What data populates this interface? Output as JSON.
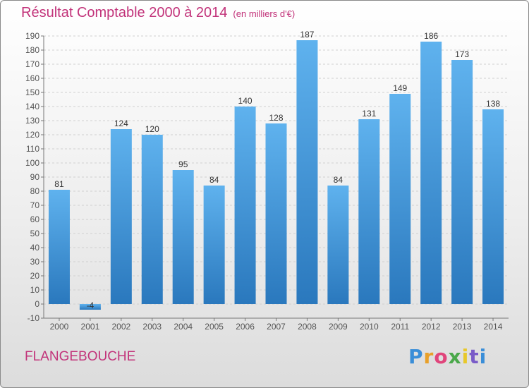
{
  "title": "Résultat Comptable 2000 à 2014",
  "subtitle": "(en milliers d'€)",
  "place": "FLANGEBOUCHE",
  "logo": {
    "letters": [
      "P",
      "r",
      "o",
      "x",
      "i",
      "t",
      "i"
    ],
    "colors": [
      "#3a8ed8",
      "#e8a02a",
      "#e0457b",
      "#4aa84a",
      "#e8c82a",
      "#7a5cc8",
      "#3a8ed8"
    ]
  },
  "colors": {
    "bar_light": "#5fb2ee",
    "bar_dark": "#2a78bd",
    "title": "#c2337a",
    "grid": "#d0d0d0"
  },
  "chart_data": {
    "type": "bar",
    "title": "Résultat Comptable 2000 à 2014",
    "subtitle": "(en milliers d'€)",
    "categories": [
      "2000",
      "2001",
      "2002",
      "2003",
      "2004",
      "2005",
      "2006",
      "2007",
      "2008",
      "2009",
      "2010",
      "2011",
      "2012",
      "2013",
      "2014"
    ],
    "values": [
      81,
      -4,
      124,
      120,
      95,
      84,
      140,
      128,
      187,
      84,
      131,
      149,
      186,
      173,
      138
    ],
    "ylim": [
      -10,
      190
    ],
    "yticks": [
      -10,
      0,
      10,
      20,
      30,
      40,
      50,
      60,
      70,
      80,
      90,
      100,
      110,
      120,
      130,
      140,
      150,
      160,
      170,
      180,
      190
    ],
    "grid": true,
    "xlabel": "",
    "ylabel": ""
  }
}
